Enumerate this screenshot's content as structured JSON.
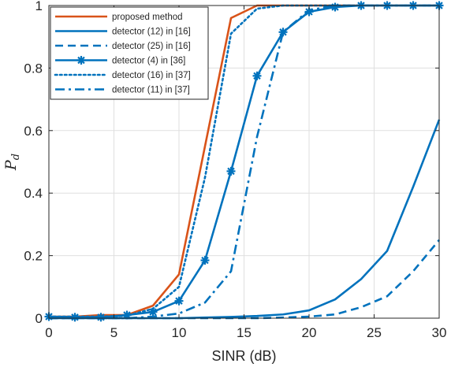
{
  "chart_data": {
    "type": "line",
    "xlabel": "SINR (dB)",
    "ylabel": "P",
    "ylabel_sub": "d",
    "xlim": [
      0,
      30
    ],
    "ylim": [
      0,
      1
    ],
    "xticks": [
      0,
      5,
      10,
      15,
      20,
      25,
      30
    ],
    "yticks": [
      0,
      0.2,
      0.4,
      0.6,
      0.8,
      1
    ],
    "ytick_labels": [
      "0",
      "0.2",
      "0.4",
      "0.6",
      "0.8",
      "1"
    ],
    "grid": true,
    "legend_position": "top-left",
    "series": [
      {
        "name": "proposed method",
        "color": "#d95319",
        "style": "solid",
        "marker": "none",
        "x": [
          0,
          2,
          4,
          6,
          8,
          10,
          12,
          14,
          16,
          18,
          20,
          22,
          24,
          26,
          28,
          30
        ],
        "y": [
          0.005,
          0.005,
          0.01,
          0.01,
          0.04,
          0.14,
          0.55,
          0.96,
          1.0,
          1.0,
          1.0,
          1.0,
          1.0,
          1.0,
          1.0,
          1.0
        ]
      },
      {
        "name": "detector (12) in [16]",
        "color": "#0072bd",
        "style": "solid",
        "marker": "none",
        "x": [
          0,
          2,
          4,
          6,
          8,
          10,
          12,
          14,
          16,
          18,
          20,
          22,
          24,
          26,
          28,
          30
        ],
        "y": [
          0.0,
          0.0,
          0.0,
          0.0,
          0.0,
          0.0,
          0.002,
          0.004,
          0.007,
          0.012,
          0.025,
          0.06,
          0.125,
          0.215,
          0.42,
          0.635
        ]
      },
      {
        "name": "detector (25) in [16]",
        "color": "#0072bd",
        "style": "dashed",
        "marker": "none",
        "x": [
          0,
          2,
          4,
          6,
          8,
          10,
          12,
          14,
          16,
          18,
          20,
          22,
          24,
          26,
          28,
          30
        ],
        "y": [
          0.0,
          0.0,
          0.0,
          0.0,
          0.0,
          0.0,
          0.0,
          0.0,
          0.0,
          0.002,
          0.005,
          0.012,
          0.035,
          0.07,
          0.15,
          0.25
        ]
      },
      {
        "name": "detector (4) in [36]",
        "color": "#0072bd",
        "style": "solid",
        "marker": "asterisk",
        "x": [
          0,
          2,
          4,
          6,
          8,
          10,
          12,
          14,
          16,
          18,
          20,
          22,
          24,
          26,
          28,
          30
        ],
        "y": [
          0.005,
          0.003,
          0.003,
          0.01,
          0.02,
          0.055,
          0.185,
          0.47,
          0.775,
          0.915,
          0.98,
          0.995,
          1.0,
          1.0,
          1.0,
          1.0
        ]
      },
      {
        "name": "detector (16) in [37]",
        "color": "#0072bd",
        "style": "dotted",
        "marker": "none",
        "x": [
          0,
          2,
          4,
          6,
          8,
          10,
          12,
          14,
          16,
          18,
          20,
          22,
          24,
          26,
          28,
          30
        ],
        "y": [
          0.005,
          0.005,
          0.005,
          0.008,
          0.03,
          0.1,
          0.45,
          0.91,
          0.99,
          1.0,
          1.0,
          1.0,
          1.0,
          1.0,
          1.0,
          1.0
        ]
      },
      {
        "name": "detector (11) in [37]",
        "color": "#0072bd",
        "style": "dashdot",
        "marker": "none",
        "x": [
          0,
          2,
          4,
          6,
          8,
          10,
          12,
          14,
          16,
          18,
          20,
          22,
          24,
          26,
          28,
          30
        ],
        "y": [
          0.0,
          0.0,
          0.0,
          0.0,
          0.005,
          0.015,
          0.05,
          0.15,
          0.58,
          0.915,
          0.985,
          1.0,
          1.0,
          1.0,
          1.0,
          1.0
        ]
      }
    ]
  }
}
